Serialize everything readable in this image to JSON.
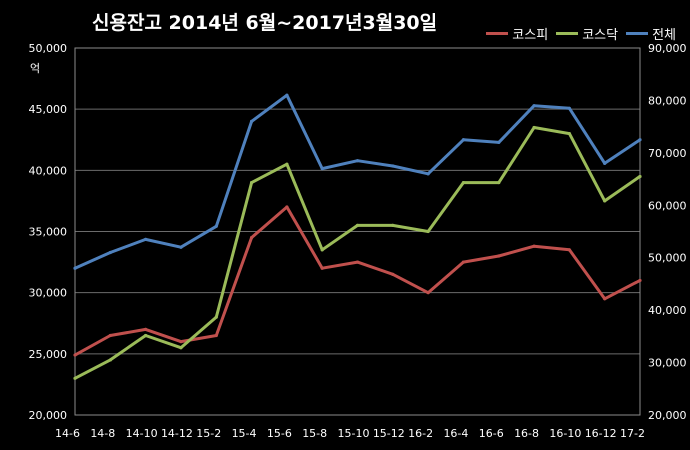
{
  "title": "신용잔고  2014년 6월~2017년3월30일",
  "left_unit": "억",
  "chart_data": {
    "type": "line",
    "title": "신용잔고  2014년 6월~2017년3월30일",
    "x": [
      "14-6",
      "14-8",
      "14-10",
      "14-12",
      "15-2",
      "15-4",
      "15-6",
      "15-8",
      "15-10",
      "15-12",
      "16-2",
      "16-4",
      "16-6",
      "16-8",
      "16-10",
      "16-12",
      "17-2"
    ],
    "series": [
      {
        "name": "코스피",
        "axis": "left",
        "color": "#c0504d",
        "values": [
          24900,
          26500,
          27000,
          26000,
          26500,
          34500,
          37000,
          32000,
          32500,
          31500,
          30000,
          32500,
          33000,
          33800,
          33500,
          29500,
          31000
        ]
      },
      {
        "name": "코스닥",
        "axis": "left",
        "color": "#9bbb59",
        "values": [
          23000,
          24500,
          26500,
          25500,
          28000,
          39000,
          40500,
          33500,
          35500,
          35500,
          35000,
          39000,
          39000,
          43500,
          43000,
          37500,
          39500
        ]
      },
      {
        "name": "전체",
        "axis": "right",
        "color": "#4f81bd",
        "values": [
          48000,
          51000,
          53500,
          52000,
          56000,
          76000,
          81000,
          67000,
          68500,
          67500,
          66000,
          72500,
          72000,
          79000,
          78500,
          68000,
          72500
        ]
      }
    ],
    "left_axis": {
      "ticks": [
        "20,000",
        "25,000",
        "30,000",
        "35,000",
        "40,000",
        "45,000",
        "50,000"
      ],
      "ylim": [
        20000,
        50000
      ]
    },
    "right_axis": {
      "ticks": [
        "20,000",
        "30,000",
        "40,000",
        "50,000",
        "60,000",
        "70,000",
        "80,000",
        "90,000"
      ],
      "ylim": [
        20000,
        90000
      ]
    },
    "grid": true,
    "legend_position": "top-right"
  }
}
